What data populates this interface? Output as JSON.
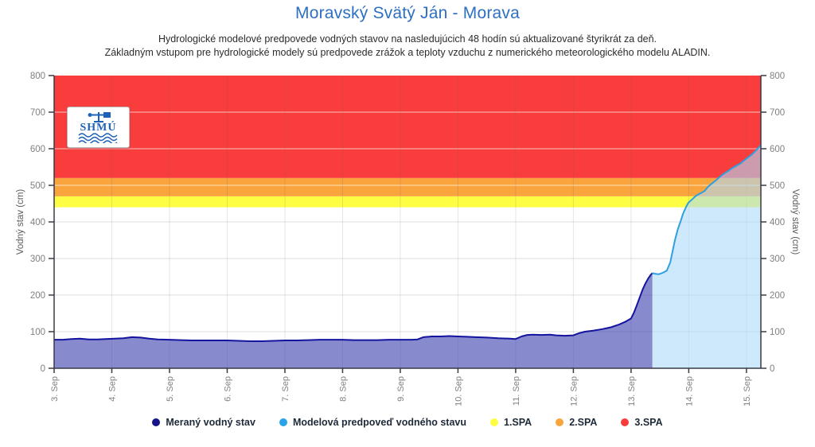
{
  "page": {
    "title": "Moravský Svätý Ján - Morava",
    "subtitle1": "Hydrologické modelové predpovede vodných stavov na nasledujúcich 48 hodín sú aktualizované štyrikrát za deň.",
    "subtitle2": "Základným vstupom pre hydrologické modely sú predpovede zrážok a teploty vzduchu z numerického meteorologického modelu ALADIN."
  },
  "logo": {
    "text": "SHMÚ"
  },
  "chart_data": {
    "type": "area",
    "title": "Moravský Svätý Ján - Morava",
    "ylabel_left": "Vodný stav (cm)",
    "ylabel_right": "Vodný stav (cm)",
    "ylim": [
      0,
      800
    ],
    "y_ticks": [
      0,
      100,
      200,
      300,
      400,
      500,
      600,
      700,
      800
    ],
    "x_domain_days": [
      3,
      15.25
    ],
    "x_tick_days": [
      3,
      4,
      5,
      6,
      7,
      8,
      9,
      10,
      11,
      12,
      13,
      14,
      15
    ],
    "x_tick_labels": [
      "3. Sep",
      "4. Sep",
      "5. Sep",
      "6. Sep",
      "7. Sep",
      "8. Sep",
      "9. Sep",
      "10. Sep",
      "11. Sep",
      "12. Sep",
      "13. Sep",
      "14. Sep",
      "15. Sep"
    ],
    "grid": true,
    "bands": [
      {
        "name": "1.SPA",
        "from": 440,
        "to": 470,
        "color": "#fdfd43"
      },
      {
        "name": "2.SPA",
        "from": 470,
        "to": 520,
        "color": "#f9a43c"
      },
      {
        "name": "3.SPA",
        "from": 520,
        "to": 800,
        "color": "#f93d3d"
      }
    ],
    "series": [
      {
        "name": "Meraný vodný stav",
        "stroke": "#14149e",
        "fill": "rgba(62,66,172,0.62)",
        "points": [
          [
            3.0,
            78
          ],
          [
            3.15,
            78
          ],
          [
            3.3,
            80
          ],
          [
            3.45,
            81
          ],
          [
            3.6,
            79
          ],
          [
            3.75,
            79
          ],
          [
            3.9,
            80
          ],
          [
            4.05,
            81
          ],
          [
            4.2,
            82
          ],
          [
            4.35,
            85
          ],
          [
            4.5,
            84
          ],
          [
            4.65,
            81
          ],
          [
            4.8,
            79
          ],
          [
            5.0,
            78
          ],
          [
            5.2,
            77
          ],
          [
            5.4,
            76
          ],
          [
            5.6,
            76
          ],
          [
            5.8,
            76
          ],
          [
            6.0,
            76
          ],
          [
            6.2,
            75
          ],
          [
            6.4,
            74
          ],
          [
            6.6,
            74
          ],
          [
            6.8,
            75
          ],
          [
            7.0,
            76
          ],
          [
            7.2,
            76
          ],
          [
            7.4,
            77
          ],
          [
            7.6,
            78
          ],
          [
            7.8,
            78
          ],
          [
            8.0,
            78
          ],
          [
            8.2,
            77
          ],
          [
            8.4,
            77
          ],
          [
            8.6,
            77
          ],
          [
            8.8,
            78
          ],
          [
            9.0,
            78
          ],
          [
            9.2,
            78
          ],
          [
            9.3,
            79
          ],
          [
            9.4,
            85
          ],
          [
            9.55,
            87
          ],
          [
            9.7,
            87
          ],
          [
            9.85,
            88
          ],
          [
            10.0,
            87
          ],
          [
            10.15,
            86
          ],
          [
            10.3,
            85
          ],
          [
            10.5,
            84
          ],
          [
            10.7,
            82
          ],
          [
            10.9,
            81
          ],
          [
            11.0,
            80
          ],
          [
            11.1,
            87
          ],
          [
            11.2,
            91
          ],
          [
            11.3,
            92
          ],
          [
            11.45,
            91
          ],
          [
            11.6,
            92
          ],
          [
            11.7,
            90
          ],
          [
            11.85,
            89
          ],
          [
            12.0,
            90
          ],
          [
            12.1,
            96
          ],
          [
            12.2,
            100
          ],
          [
            12.35,
            103
          ],
          [
            12.5,
            107
          ],
          [
            12.65,
            112
          ],
          [
            12.8,
            120
          ],
          [
            12.9,
            127
          ],
          [
            13.0,
            136
          ],
          [
            13.05,
            152
          ],
          [
            13.1,
            172
          ],
          [
            13.15,
            194
          ],
          [
            13.2,
            215
          ],
          [
            13.25,
            232
          ],
          [
            13.3,
            246
          ],
          [
            13.34,
            255
          ],
          [
            13.37,
            260
          ]
        ]
      },
      {
        "name": "Modelová predpoveď vodného stavu",
        "stroke": "#2f9fe0",
        "fill": "rgba(173,219,248,0.6)",
        "points": [
          [
            13.37,
            260
          ],
          [
            13.42,
            258
          ],
          [
            13.48,
            257
          ],
          [
            13.55,
            261
          ],
          [
            13.62,
            267
          ],
          [
            13.68,
            290
          ],
          [
            13.72,
            320
          ],
          [
            13.76,
            350
          ],
          [
            13.81,
            380
          ],
          [
            13.86,
            402
          ],
          [
            13.9,
            422
          ],
          [
            13.95,
            440
          ],
          [
            13.99,
            452
          ],
          [
            14.06,
            462
          ],
          [
            14.13,
            472
          ],
          [
            14.2,
            478
          ],
          [
            14.27,
            484
          ],
          [
            14.34,
            497
          ],
          [
            14.41,
            506
          ],
          [
            14.48,
            515
          ],
          [
            14.55,
            525
          ],
          [
            14.61,
            532
          ],
          [
            14.68,
            539
          ],
          [
            14.75,
            547
          ],
          [
            14.82,
            553
          ],
          [
            14.9,
            560
          ],
          [
            15.0,
            573
          ],
          [
            15.1,
            585
          ],
          [
            15.17,
            596
          ],
          [
            15.25,
            610
          ]
        ]
      }
    ],
    "legend": [
      {
        "label": "Meraný vodný stav",
        "color": "#141487"
      },
      {
        "label": "Modelová predpoveď vodného stavu",
        "color": "#29a3e8"
      },
      {
        "label": "1.SPA",
        "color": "#fdfd43"
      },
      {
        "label": "2.SPA",
        "color": "#f9a43c"
      },
      {
        "label": "3.SPA",
        "color": "#f93d3d"
      }
    ],
    "legend_position": "bottom"
  }
}
